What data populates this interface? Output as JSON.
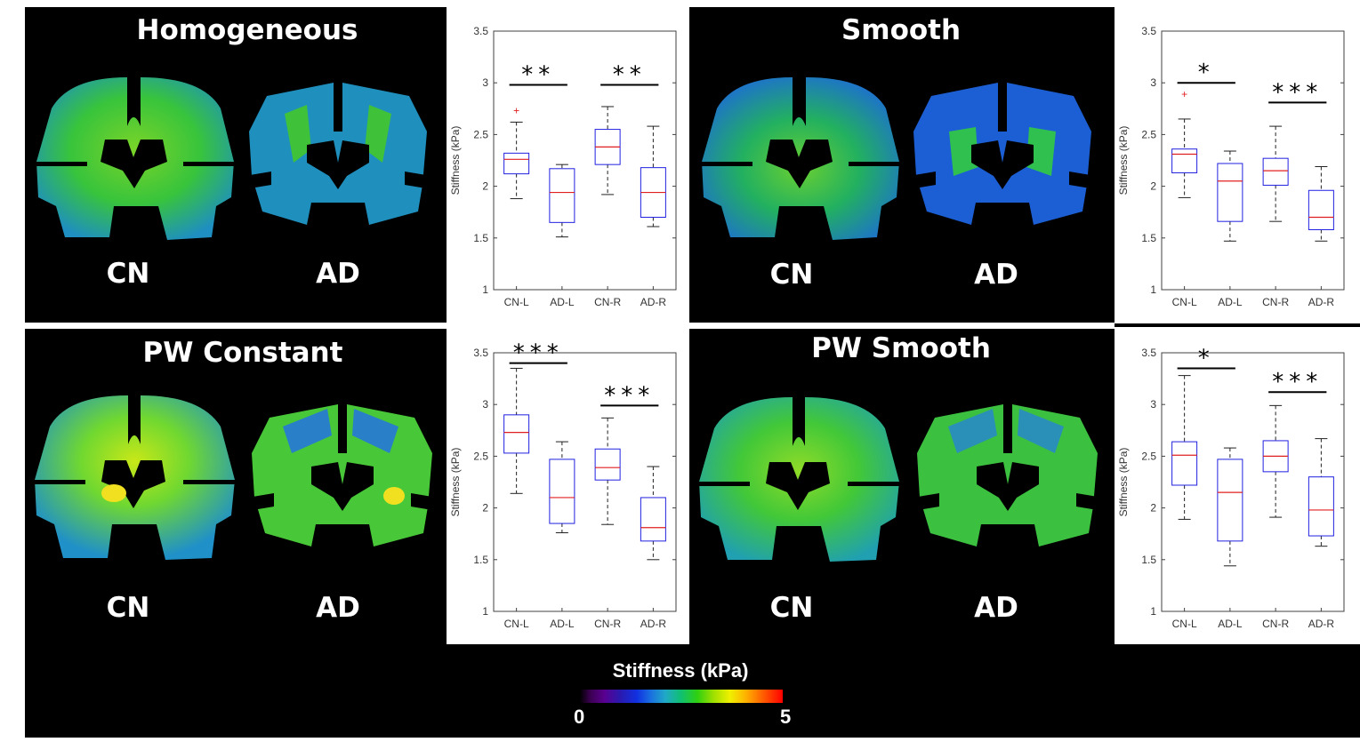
{
  "panels": [
    {
      "title": "Homogeneous",
      "left_label": "CN",
      "right_label": "AD"
    },
    {
      "title": "Smooth",
      "left_label": "CN",
      "right_label": "AD"
    },
    {
      "title": "PW Constant",
      "left_label": "CN",
      "right_label": "AD"
    },
    {
      "title": "PW Smooth",
      "left_label": "CN",
      "right_label": "AD"
    }
  ],
  "colorbar": {
    "title": "Stiffness (kPa)",
    "min_label": "0",
    "max_label": "5"
  },
  "colors": {
    "box": "#2020e0",
    "median": "#e02020",
    "axis": "#404040",
    "whisker": "#202020"
  },
  "chart_data": [
    {
      "type": "box",
      "ylabel": "Stiffness (kPa)",
      "ylim": [
        1,
        3.5
      ],
      "yticks": [
        "1",
        "1.5",
        "2",
        "2.5",
        "3",
        "3.5"
      ],
      "categories": [
        "CN-L",
        "AD-L",
        "CN-R",
        "AD-R"
      ],
      "boxes": [
        {
          "lo": 1.88,
          "q1": 2.12,
          "med": 2.26,
          "q3": 2.32,
          "hi": 2.62,
          "outliers": [
            2.73
          ]
        },
        {
          "lo": 1.51,
          "q1": 1.65,
          "med": 1.94,
          "q3": 2.17,
          "hi": 2.21,
          "outliers": []
        },
        {
          "lo": 1.92,
          "q1": 2.21,
          "med": 2.38,
          "q3": 2.55,
          "hi": 2.77,
          "outliers": []
        },
        {
          "lo": 1.61,
          "q1": 1.7,
          "med": 1.94,
          "q3": 2.18,
          "hi": 2.58,
          "outliers": []
        }
      ],
      "significance": [
        {
          "from": 0,
          "to": 1,
          "label": "**",
          "y": 2.98
        },
        {
          "from": 2,
          "to": 3,
          "label": "**",
          "y": 2.98
        }
      ]
    },
    {
      "type": "box",
      "ylabel": "Stiffness (kPa)",
      "ylim": [
        1,
        3.5
      ],
      "yticks": [
        "1",
        "1.5",
        "2",
        "2.5",
        "3",
        "3.5"
      ],
      "categories": [
        "CN-L",
        "AD-L",
        "CN-R",
        "AD-R"
      ],
      "boxes": [
        {
          "lo": 1.89,
          "q1": 2.13,
          "med": 2.31,
          "q3": 2.36,
          "hi": 2.65,
          "outliers": [
            2.89
          ]
        },
        {
          "lo": 1.47,
          "q1": 1.66,
          "med": 2.05,
          "q3": 2.22,
          "hi": 2.34,
          "outliers": []
        },
        {
          "lo": 1.66,
          "q1": 2.01,
          "med": 2.15,
          "q3": 2.27,
          "hi": 2.58,
          "outliers": []
        },
        {
          "lo": 1.47,
          "q1": 1.58,
          "med": 1.7,
          "q3": 1.96,
          "hi": 2.19,
          "outliers": []
        }
      ],
      "significance": [
        {
          "from": 0,
          "to": 1,
          "label": "*",
          "y": 3.0
        },
        {
          "from": 2,
          "to": 3,
          "label": "***",
          "y": 2.81
        }
      ]
    },
    {
      "type": "box",
      "ylabel": "Stiffness (kPa)",
      "ylim": [
        1,
        3.5
      ],
      "yticks": [
        "1",
        "1.5",
        "2",
        "2.5",
        "3",
        "3.5"
      ],
      "categories": [
        "CN-L",
        "AD-L",
        "CN-R",
        "AD-R"
      ],
      "boxes": [
        {
          "lo": 2.14,
          "q1": 2.53,
          "med": 2.73,
          "q3": 2.9,
          "hi": 3.35,
          "outliers": []
        },
        {
          "lo": 1.76,
          "q1": 1.85,
          "med": 2.1,
          "q3": 2.47,
          "hi": 2.64,
          "outliers": []
        },
        {
          "lo": 1.84,
          "q1": 2.27,
          "med": 2.39,
          "q3": 2.57,
          "hi": 2.87,
          "outliers": []
        },
        {
          "lo": 1.5,
          "q1": 1.68,
          "med": 1.81,
          "q3": 2.1,
          "hi": 2.4,
          "outliers": []
        }
      ],
      "significance": [
        {
          "from": 0,
          "to": 1,
          "label": "***",
          "y": 3.4
        },
        {
          "from": 2,
          "to": 3,
          "label": "***",
          "y": 2.99
        }
      ]
    },
    {
      "type": "box",
      "ylabel": "Stiffness (kPa)",
      "ylim": [
        1,
        3.5
      ],
      "yticks": [
        "1",
        "1.5",
        "2",
        "2.5",
        "3",
        "3.5"
      ],
      "categories": [
        "CN-L",
        "AD-L",
        "CN-R",
        "AD-R"
      ],
      "boxes": [
        {
          "lo": 1.89,
          "q1": 2.22,
          "med": 2.51,
          "q3": 2.64,
          "hi": 3.28,
          "outliers": []
        },
        {
          "lo": 1.44,
          "q1": 1.68,
          "med": 2.15,
          "q3": 2.47,
          "hi": 2.58,
          "outliers": []
        },
        {
          "lo": 1.91,
          "q1": 2.35,
          "med": 2.5,
          "q3": 2.65,
          "hi": 2.99,
          "outliers": []
        },
        {
          "lo": 1.63,
          "q1": 1.73,
          "med": 1.98,
          "q3": 2.3,
          "hi": 2.67,
          "outliers": []
        }
      ],
      "significance": [
        {
          "from": 0,
          "to": 1,
          "label": "*",
          "y": 3.35
        },
        {
          "from": 2,
          "to": 3,
          "label": "***",
          "y": 3.12
        }
      ]
    }
  ]
}
